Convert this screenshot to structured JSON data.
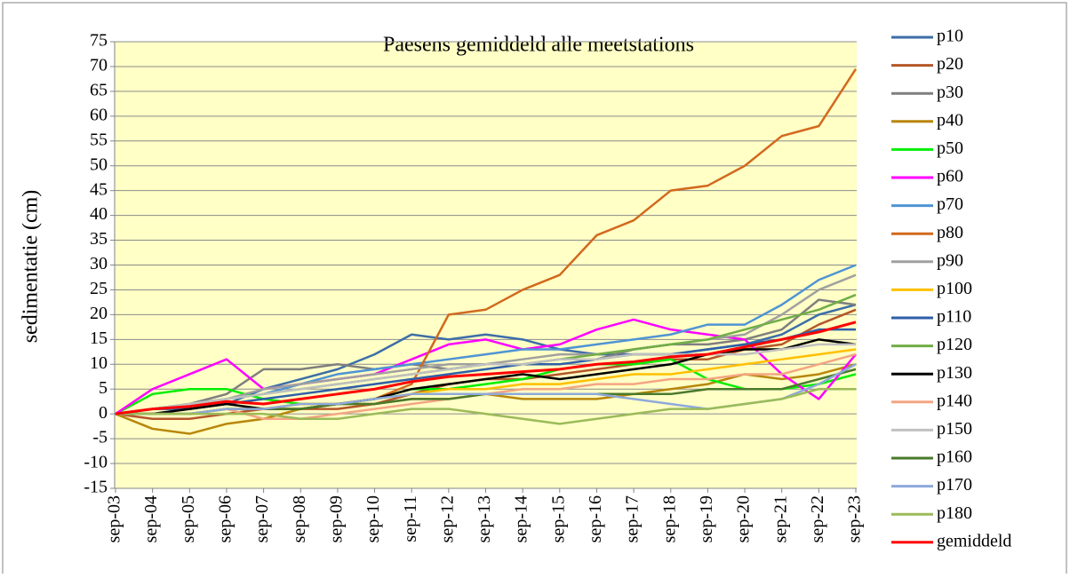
{
  "chart_data": {
    "type": "line",
    "title": "Paesens gemiddeld alle meetstations",
    "y_label": "sedimentatie (cm)",
    "categories": [
      "sep-03",
      "sep-04",
      "sep-05",
      "sep-06",
      "sep-07",
      "sep-08",
      "sep-09",
      "sep-10",
      "sep-11",
      "sep-12",
      "sep-13",
      "sep-14",
      "sep-15",
      "sep-16",
      "sep-17",
      "sep-18",
      "sep-19",
      "sep-20",
      "sep-21",
      "sep-22",
      "sep-23"
    ],
    "ylim": [
      -15,
      75
    ],
    "yticks": [
      -15,
      -10,
      -5,
      0,
      5,
      10,
      15,
      20,
      25,
      30,
      35,
      40,
      45,
      50,
      55,
      60,
      65,
      70,
      75
    ],
    "grid": true,
    "legend": "right",
    "series": [
      {
        "name": "p10",
        "color": "#3c6ea8",
        "values": [
          0,
          0,
          1,
          2,
          5,
          7,
          9,
          12,
          16,
          15,
          16,
          15,
          13,
          12,
          12,
          12,
          13,
          14,
          16,
          20,
          22
        ]
      },
      {
        "name": "p20",
        "color": "#b5562a",
        "values": [
          0,
          -1,
          -1,
          0,
          1,
          1,
          1,
          2,
          4,
          6,
          7,
          7,
          8,
          9,
          10,
          11,
          11,
          13,
          14,
          18,
          21
        ]
      },
      {
        "name": "p30",
        "color": "#7f7f7f",
        "values": [
          0,
          1,
          2,
          4,
          9,
          9,
          10,
          9,
          10,
          9,
          10,
          10,
          11,
          11,
          13,
          14,
          14,
          15,
          17,
          23,
          22
        ]
      },
      {
        "name": "p40",
        "color": "#b8860b",
        "values": [
          0,
          -3,
          -4,
          -2,
          -1,
          1,
          2,
          2,
          3,
          3,
          4,
          3,
          3,
          3,
          4,
          5,
          6,
          8,
          7,
          8,
          10
        ]
      },
      {
        "name": "p50",
        "color": "#00ee00",
        "values": [
          0,
          4,
          5,
          5,
          3,
          2,
          2,
          3,
          5,
          5,
          6,
          7,
          9,
          10,
          10,
          11,
          7,
          5,
          5,
          6,
          8
        ]
      },
      {
        "name": "p60",
        "color": "#ff00ff",
        "values": [
          0,
          5,
          8,
          11,
          5,
          6,
          7,
          8,
          11,
          14,
          15,
          13,
          14,
          17,
          19,
          17,
          16,
          15,
          8,
          3,
          12
        ]
      },
      {
        "name": "p70",
        "color": "#4f94d4",
        "values": [
          0,
          1,
          2,
          3,
          4,
          6,
          8,
          9,
          10,
          11,
          12,
          13,
          13,
          14,
          15,
          16,
          18,
          18,
          22,
          27,
          30
        ]
      },
      {
        "name": "p80",
        "color": "#d2691e",
        "values": [
          0,
          0,
          0,
          1,
          1,
          2,
          2,
          3,
          6,
          20,
          21,
          25,
          28,
          36,
          39,
          45,
          46,
          50,
          56,
          58,
          69.5
        ]
      },
      {
        "name": "p90",
        "color": "#a0a0a0",
        "values": [
          0,
          1,
          2,
          3,
          5,
          6,
          7,
          8,
          9,
          10,
          10,
          11,
          12,
          12,
          13,
          14,
          15,
          16,
          20,
          25,
          28
        ]
      },
      {
        "name": "p100",
        "color": "#ffc000",
        "values": [
          0,
          0,
          0,
          1,
          1,
          2,
          2,
          3,
          4,
          5,
          5,
          6,
          6,
          7,
          8,
          8,
          9,
          10,
          11,
          12,
          13
        ]
      },
      {
        "name": "p110",
        "color": "#2e5fa8",
        "values": [
          0,
          1,
          1,
          2,
          3,
          4,
          5,
          6,
          7,
          8,
          9,
          10,
          10,
          11,
          12,
          12,
          13,
          14,
          15,
          17,
          17
        ]
      },
      {
        "name": "p120",
        "color": "#70ad47",
        "values": [
          0,
          1,
          2,
          3,
          4,
          5,
          6,
          7,
          8,
          9,
          10,
          10,
          11,
          12,
          13,
          14,
          15,
          17,
          19,
          21,
          24
        ]
      },
      {
        "name": "p130",
        "color": "#000000",
        "values": [
          0,
          0,
          1,
          2,
          1,
          1,
          2,
          3,
          5,
          6,
          7,
          8,
          7,
          8,
          9,
          10,
          12,
          13,
          13,
          15,
          14
        ]
      },
      {
        "name": "p140",
        "color": "#f4a582",
        "values": [
          0,
          0,
          0,
          1,
          -1,
          -1,
          0,
          1,
          2,
          3,
          4,
          5,
          5,
          6,
          6,
          7,
          7,
          8,
          8,
          10,
          12
        ]
      },
      {
        "name": "p150",
        "color": "#c0c0c0",
        "values": [
          0,
          1,
          2,
          3,
          4,
          5,
          6,
          7,
          8,
          9,
          10,
          10,
          11,
          11,
          12,
          12,
          12,
          12,
          13,
          14,
          14
        ]
      },
      {
        "name": "p160",
        "color": "#4a7a2c",
        "values": [
          0,
          0,
          0,
          1,
          1,
          1,
          2,
          2,
          3,
          3,
          4,
          4,
          4,
          4,
          4,
          4,
          5,
          5,
          5,
          7,
          9
        ]
      },
      {
        "name": "p170",
        "color": "#8ea9db",
        "values": [
          0,
          0,
          0,
          1,
          1,
          2,
          2,
          3,
          4,
          4,
          4,
          4,
          4,
          4,
          3,
          2,
          1,
          2,
          3,
          6,
          10
        ]
      },
      {
        "name": "p180",
        "color": "#9bbb59",
        "values": [
          0,
          0,
          0,
          0,
          0,
          -1,
          -1,
          0,
          1,
          1,
          0,
          -1,
          -2,
          -1,
          0,
          1,
          1,
          2,
          3,
          5,
          5
        ]
      },
      {
        "name": "gemiddeld",
        "color": "#ff0000",
        "values": [
          0,
          1,
          1.5,
          2.5,
          2,
          3,
          4,
          5,
          6.5,
          7.5,
          8,
          8.5,
          9,
          10,
          10.5,
          11.5,
          12,
          13.5,
          15,
          16.5,
          18.5
        ]
      }
    ]
  }
}
